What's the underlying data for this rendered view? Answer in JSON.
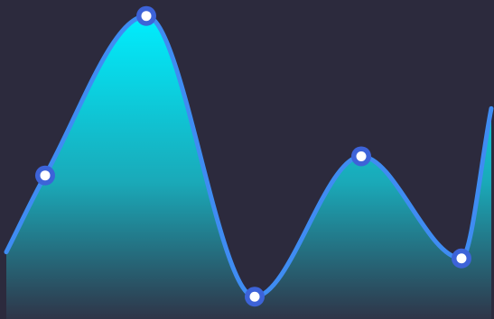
{
  "colors": {
    "background": "#2c2a3d",
    "line": "#3f8cf2",
    "area_top": "#00eefe",
    "area_mid": "#1aa9b8",
    "area_bottom": "#2f3548",
    "marker_ring": "#3d63d8",
    "marker_center": "#ffffff"
  },
  "chart_data": {
    "type": "area",
    "smooth": true,
    "grid": false,
    "legend": "none",
    "x": [
      1,
      2,
      3,
      4,
      5
    ],
    "series": [
      {
        "values": [
          45,
          95,
          7,
          51,
          19
        ]
      }
    ],
    "line_start": 21,
    "line_end": 66,
    "ylim": [
      0,
      100
    ]
  }
}
